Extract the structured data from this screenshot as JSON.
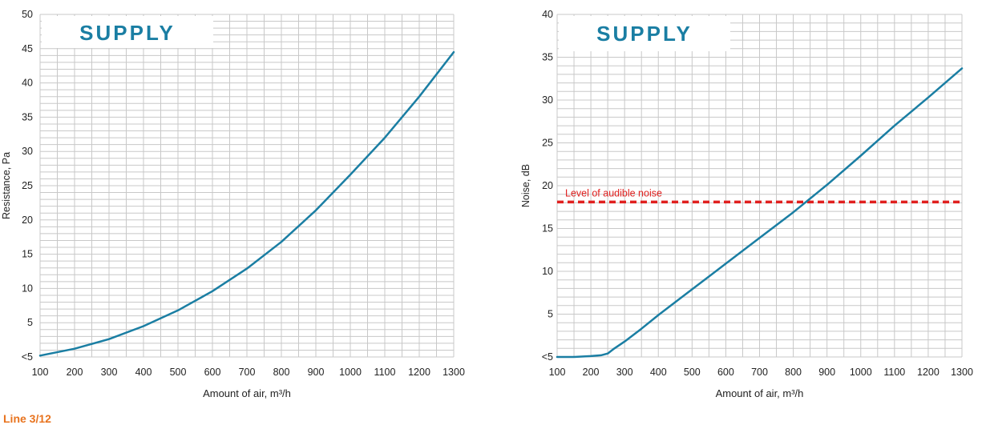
{
  "footer": {
    "label": "Line 3/12"
  },
  "colors": {
    "curve": "#1a7ea3",
    "title": "#1a7ea3",
    "grid": "#c8c8c8",
    "axis_text": "#222222",
    "threshold": "#e0201f",
    "footer": "#e8731e"
  },
  "chart_data": [
    {
      "type": "line",
      "title": "SUPPLY",
      "xlabel": "Amount of air, m³/h",
      "ylabel": "Resistance, Pa",
      "xlim": [
        100,
        1300
      ],
      "ylim": [
        0,
        50
      ],
      "x_ticks": [
        "100",
        "200",
        "300",
        "400",
        "500",
        "600",
        "700",
        "800",
        "900",
        "1000",
        "1100",
        "1200",
        "1300"
      ],
      "y_ticks": [
        "<5",
        "5",
        "10",
        "15",
        "20",
        "25",
        "30",
        "35",
        "40",
        "45",
        "50"
      ],
      "grid": true,
      "series": [
        {
          "x": [
            100,
            200,
            300,
            400,
            500,
            600,
            700,
            800,
            900,
            1000,
            1100,
            1200,
            1300
          ],
          "y": [
            0.2,
            1.2,
            2.6,
            4.5,
            6.8,
            9.6,
            12.9,
            16.8,
            21.4,
            26.6,
            32.0,
            38.0,
            44.5
          ]
        }
      ]
    },
    {
      "type": "line",
      "title": "SUPPLY",
      "xlabel": "Amount of air, m³/h",
      "ylabel": "Noise, dB",
      "xlim": [
        100,
        1300
      ],
      "ylim": [
        0,
        40
      ],
      "x_ticks": [
        "100",
        "200",
        "300",
        "400",
        "500",
        "600",
        "700",
        "800",
        "900",
        "1000",
        "1100",
        "1200",
        "1300"
      ],
      "y_ticks": [
        "<5",
        "5",
        "10",
        "15",
        "20",
        "25",
        "30",
        "35",
        "40"
      ],
      "grid": true,
      "series": [
        {
          "x": [
            100,
            150,
            200,
            230,
            250,
            270,
            300,
            350,
            400,
            500,
            600,
            700,
            800,
            900,
            1000,
            1100,
            1200,
            1300
          ],
          "y": [
            0.0,
            0.0,
            0.1,
            0.2,
            0.4,
            1.0,
            1.8,
            3.3,
            4.9,
            7.9,
            10.9,
            13.9,
            16.9,
            20.1,
            23.5,
            27.0,
            30.3,
            33.7
          ]
        }
      ],
      "threshold": {
        "label": "Level of audible noise",
        "y": 18.1
      }
    }
  ]
}
